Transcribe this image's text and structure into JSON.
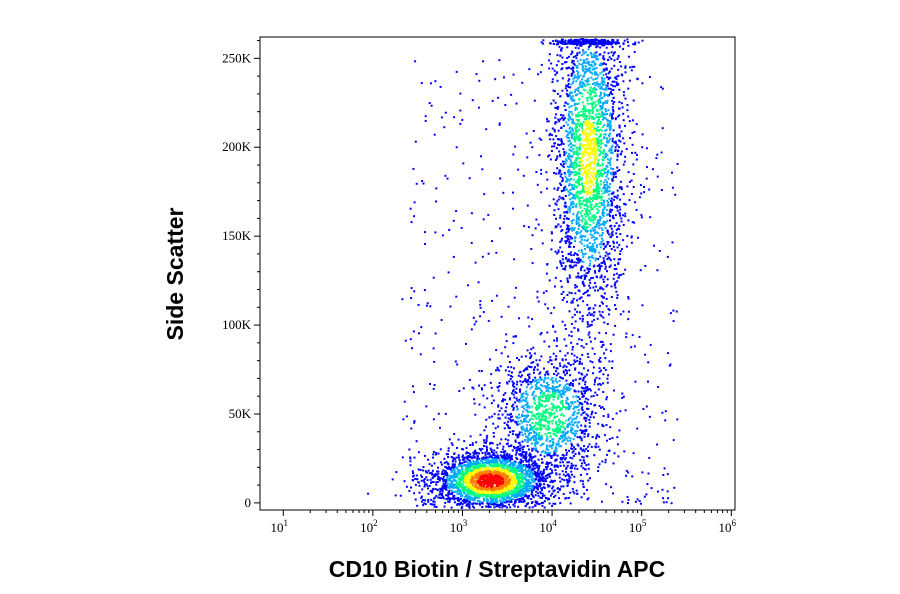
{
  "chart_data": {
    "type": "scatter",
    "title": "",
    "xlabel": "CD10 Biotin / Streptavidin APC",
    "ylabel": "Side Scatter",
    "x_scale": "log",
    "xlim": [
      5.5,
      1100000
    ],
    "ylim": [
      -4000,
      262000
    ],
    "x_ticks": [
      {
        "value": 10,
        "base": "10",
        "exp": "1"
      },
      {
        "value": 100,
        "base": "10",
        "exp": "2"
      },
      {
        "value": 1000,
        "base": "10",
        "exp": "3"
      },
      {
        "value": 10000,
        "base": "10",
        "exp": "4"
      },
      {
        "value": 100000,
        "base": "10",
        "exp": "5"
      },
      {
        "value": 1000000,
        "base": "10",
        "exp": "6"
      }
    ],
    "y_ticks": [
      {
        "value": 0,
        "label": "0"
      },
      {
        "value": 50000,
        "label": "50K"
      },
      {
        "value": 100000,
        "label": "100K"
      },
      {
        "value": 150000,
        "label": "150K"
      },
      {
        "value": 200000,
        "label": "200K"
      },
      {
        "value": 250000,
        "label": "250K"
      }
    ],
    "density_colors": [
      "#0000ff",
      "#00aaff",
      "#00ff80",
      "#ffff00",
      "#ff8000",
      "#ff0000"
    ],
    "populations": [
      {
        "x_center": 2000,
        "y_center": 13000,
        "x_spread_log10": 0.22,
        "y_spread": 5500,
        "peak_density": 1.0
      },
      {
        "x_center": 9000,
        "y_center": 50000,
        "x_spread_log10": 0.2,
        "y_spread": 12000,
        "peak_density": 0.4
      },
      {
        "x_center": 25000,
        "y_center": 195000,
        "x_spread_log10": 0.14,
        "y_spread": 32000,
        "peak_density": 0.5
      }
    ],
    "grid": false,
    "legend": "none"
  }
}
